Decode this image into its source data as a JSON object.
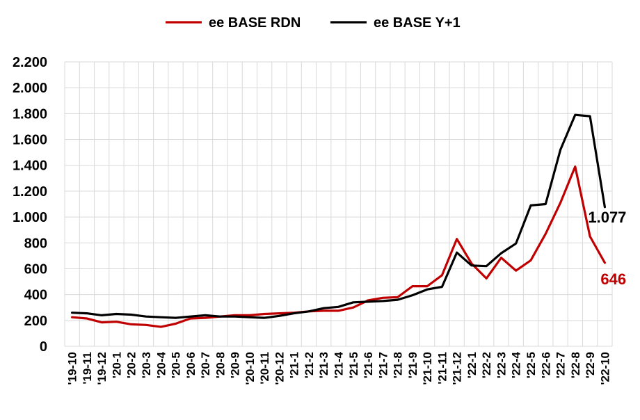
{
  "chart_data": {
    "type": "line",
    "title": "",
    "xlabel": "",
    "ylabel": "",
    "ylim": [
      0,
      2200
    ],
    "yticks": [
      0,
      200,
      400,
      600,
      800,
      1000,
      1200,
      1400,
      1600,
      1800,
      2000,
      2200
    ],
    "ytick_labels": [
      "0",
      "200",
      "400",
      "600",
      "800",
      "1.000",
      "1.200",
      "1.400",
      "1.600",
      "1.800",
      "2.000",
      "2.200"
    ],
    "grid": true,
    "legend_position": "top-center",
    "categories": [
      "'19-10",
      "'19-11",
      "'19-12",
      "'20-1",
      "'20-2",
      "'20-3",
      "'20-4",
      "'20-5",
      "'20-6",
      "'20-7",
      "'20-8",
      "'20-9",
      "'20-10",
      "'20-11",
      "'20-12",
      "'21-1",
      "'21-2",
      "'21-3",
      "'21-4",
      "'21-5",
      "'21-6",
      "'21-7",
      "'21-8",
      "'21-9",
      "'21-10",
      "'21-11",
      "'21-12",
      "'22-1",
      "'22-2",
      "'22-3",
      "'22-4",
      "'22-5",
      "'22-6",
      "'22-7",
      "'22-8",
      "'22-9",
      "'22-10"
    ],
    "series": [
      {
        "name": "ee BASE RDN",
        "color": "#c00000",
        "values": [
          225,
          215,
          185,
          190,
          170,
          165,
          150,
          175,
          215,
          220,
          230,
          240,
          240,
          250,
          255,
          260,
          270,
          275,
          275,
          300,
          355,
          375,
          380,
          465,
          465,
          550,
          830,
          640,
          525,
          685,
          585,
          665,
          870,
          1110,
          1390,
          850,
          646
        ],
        "end_label": "646"
      },
      {
        "name": "ee BASE Y+1",
        "color": "#000000",
        "values": [
          260,
          255,
          240,
          250,
          245,
          230,
          225,
          220,
          230,
          240,
          230,
          230,
          225,
          220,
          235,
          255,
          270,
          295,
          305,
          340,
          345,
          350,
          360,
          395,
          440,
          460,
          725,
          625,
          620,
          720,
          795,
          1090,
          1100,
          1520,
          1790,
          1780,
          1077
        ],
        "end_label": "1.077"
      }
    ]
  }
}
